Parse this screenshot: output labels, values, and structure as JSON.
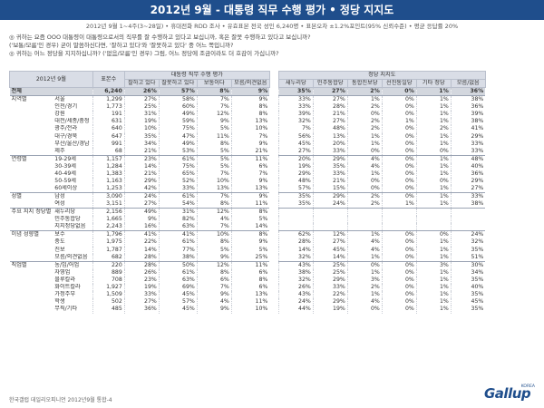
{
  "title": "2012년 9월 - 대통령 직무 수행 평가 • 정당 지지도",
  "subtitle": "2012년 9월 1~4주(3~28일) • 휴대전화 RDD 조사 • 유효표본 전국 성인 6,240명 • 표본오차 ±1.2%포인트(95% 신뢰수준) • 평균 응답률 20%",
  "questions": [
    "◎ 귀하는 요즘 OOO 대통령이 대통령으로서의 직무를 잘 수행하고 있다고 보십니까, 혹은 잘못 수행하고 있다고 보십니까?",
    "('보통/모름'인 경우) 굳이 말씀하신다면, '잘하고 있다'와 '잘못하고 있다' 중 어느 쪽입니까?",
    "◎ 귀하는 어느 정당을 지지하십니까? ('없음/모름'인 경우) 그럼, 어느 정당에 조금이라도 더 호감이 가십니까?"
  ],
  "table": {
    "corner_label": "2012년 9월",
    "group1_header": "대통령 직무 수행 평가",
    "group2_header": "정당 지지도",
    "columns": [
      "표본수",
      "잘하고 있다",
      "잘못하고 있다",
      "보통이다",
      "모름/의견없음",
      "새누리당",
      "민주통합당",
      "통합진보당",
      "선진통일당",
      "기타 정당",
      "모름/없음"
    ],
    "total": {
      "label": "전체",
      "values": [
        "6,240",
        "26%",
        "57%",
        "8%",
        "9%",
        "35%",
        "27%",
        "2%",
        "0%",
        "1%",
        "36%"
      ]
    },
    "groups": [
      {
        "name": "지역별",
        "rows": [
          {
            "label": "서울",
            "values": [
              "1,299",
              "27%",
              "58%",
              "7%",
              "9%",
              "33%",
              "27%",
              "1%",
              "0%",
              "1%",
              "38%"
            ]
          },
          {
            "label": "인천/경기",
            "values": [
              "1,773",
              "25%",
              "60%",
              "7%",
              "8%",
              "33%",
              "28%",
              "2%",
              "0%",
              "1%",
              "36%"
            ]
          },
          {
            "label": "강원",
            "values": [
              "191",
              "31%",
              "49%",
              "12%",
              "8%",
              "39%",
              "21%",
              "0%",
              "0%",
              "1%",
              "39%"
            ]
          },
          {
            "label": "대전/세종/충청",
            "values": [
              "631",
              "19%",
              "59%",
              "9%",
              "13%",
              "32%",
              "27%",
              "2%",
              "1%",
              "1%",
              "38%"
            ]
          },
          {
            "label": "광주/전라",
            "values": [
              "640",
              "10%",
              "75%",
              "5%",
              "10%",
              "7%",
              "48%",
              "2%",
              "0%",
              "2%",
              "41%"
            ]
          },
          {
            "label": "대구/경북",
            "values": [
              "647",
              "35%",
              "47%",
              "11%",
              "7%",
              "56%",
              "13%",
              "1%",
              "0%",
              "1%",
              "29%"
            ]
          },
          {
            "label": "부산/울산/경남",
            "values": [
              "991",
              "34%",
              "49%",
              "8%",
              "9%",
              "45%",
              "20%",
              "1%",
              "0%",
              "1%",
              "33%"
            ]
          },
          {
            "label": "제주",
            "values": [
              "68",
              "21%",
              "53%",
              "5%",
              "21%",
              "27%",
              "33%",
              "0%",
              "0%",
              "0%",
              "33%"
            ]
          }
        ]
      },
      {
        "name": "연령별",
        "rows": [
          {
            "label": "19-29세",
            "values": [
              "1,157",
              "23%",
              "61%",
              "5%",
              "11%",
              "20%",
              "29%",
              "4%",
              "0%",
              "1%",
              "48%"
            ]
          },
          {
            "label": "30-39세",
            "values": [
              "1,284",
              "14%",
              "75%",
              "5%",
              "6%",
              "19%",
              "35%",
              "4%",
              "0%",
              "1%",
              "40%"
            ]
          },
          {
            "label": "40-49세",
            "values": [
              "1,383",
              "21%",
              "65%",
              "7%",
              "7%",
              "29%",
              "33%",
              "1%",
              "0%",
              "1%",
              "36%"
            ]
          },
          {
            "label": "50-59세",
            "values": [
              "1,163",
              "29%",
              "52%",
              "10%",
              "9%",
              "48%",
              "21%",
              "0%",
              "0%",
              "0%",
              "29%"
            ]
          },
          {
            "label": "60세이상",
            "values": [
              "1,253",
              "42%",
              "33%",
              "13%",
              "13%",
              "57%",
              "15%",
              "0%",
              "0%",
              "1%",
              "27%"
            ]
          }
        ]
      },
      {
        "name": "성별",
        "rows": [
          {
            "label": "남성",
            "values": [
              "3,090",
              "24%",
              "61%",
              "7%",
              "9%",
              "35%",
              "29%",
              "2%",
              "0%",
              "1%",
              "33%"
            ]
          },
          {
            "label": "여성",
            "values": [
              "3,151",
              "27%",
              "54%",
              "8%",
              "11%",
              "35%",
              "24%",
              "2%",
              "1%",
              "1%",
              "38%"
            ]
          }
        ]
      },
      {
        "name": "주요 지지 정당별",
        "rows": [
          {
            "label": "새누리당",
            "values": [
              "2,156",
              "49%",
              "31%",
              "12%",
              "8%",
              "",
              "",
              "",
              "",
              "",
              ""
            ]
          },
          {
            "label": "민주통합당",
            "values": [
              "1,665",
              "9%",
              "82%",
              "4%",
              "5%",
              "",
              "",
              "",
              "",
              "",
              ""
            ]
          },
          {
            "label": "지지정당없음",
            "values": [
              "2,243",
              "16%",
              "63%",
              "7%",
              "14%",
              "",
              "",
              "",
              "",
              "",
              ""
            ]
          }
        ]
      },
      {
        "name": "이념 성향별",
        "rows": [
          {
            "label": "보수",
            "values": [
              "1,796",
              "41%",
              "41%",
              "10%",
              "8%",
              "62%",
              "12%",
              "1%",
              "0%",
              "0%",
              "24%"
            ]
          },
          {
            "label": "중도",
            "values": [
              "1,975",
              "22%",
              "61%",
              "8%",
              "9%",
              "28%",
              "27%",
              "4%",
              "0%",
              "1%",
              "32%"
            ]
          },
          {
            "label": "진보",
            "values": [
              "1,787",
              "14%",
              "77%",
              "5%",
              "5%",
              "14%",
              "45%",
              "4%",
              "0%",
              "1%",
              "35%"
            ]
          },
          {
            "label": "모름/의견없음",
            "values": [
              "682",
              "28%",
              "38%",
              "9%",
              "25%",
              "32%",
              "14%",
              "1%",
              "0%",
              "1%",
              "51%"
            ]
          }
        ]
      },
      {
        "name": "직업별",
        "rows": [
          {
            "label": "농/임/어업",
            "values": [
              "220",
              "28%",
              "50%",
              "12%",
              "11%",
              "43%",
              "25%",
              "0%",
              "0%",
              "3%",
              "30%"
            ]
          },
          {
            "label": "자영업",
            "values": [
              "889",
              "26%",
              "61%",
              "8%",
              "6%",
              "38%",
              "25%",
              "1%",
              "0%",
              "1%",
              "34%"
            ]
          },
          {
            "label": "블루칼라",
            "values": [
              "708",
              "23%",
              "63%",
              "6%",
              "8%",
              "32%",
              "29%",
              "3%",
              "0%",
              "1%",
              "35%"
            ]
          },
          {
            "label": "화이트칼라",
            "values": [
              "1,927",
              "19%",
              "69%",
              "7%",
              "6%",
              "26%",
              "33%",
              "2%",
              "0%",
              "1%",
              "40%"
            ]
          },
          {
            "label": "가정주부",
            "values": [
              "1,509",
              "33%",
              "45%",
              "9%",
              "13%",
              "43%",
              "22%",
              "1%",
              "0%",
              "1%",
              "35%"
            ]
          },
          {
            "label": "학생",
            "values": [
              "502",
              "27%",
              "57%",
              "4%",
              "11%",
              "24%",
              "29%",
              "4%",
              "0%",
              "1%",
              "45%"
            ]
          },
          {
            "label": "무직/기타",
            "values": [
              "485",
              "36%",
              "45%",
              "9%",
              "10%",
              "44%",
              "19%",
              "0%",
              "0%",
              "1%",
              "35%"
            ]
          }
        ]
      }
    ]
  },
  "footer": "한국갤럽 데일리오피니언 2012년9월 통합-4",
  "logo": {
    "text": "Gallup",
    "subtext": "KOREA",
    "color": "#1f4e8c"
  },
  "colors": {
    "title_bar": "#1f4e8c",
    "header_bg": "#d9dde6",
    "total_bg": "#d3d7de"
  }
}
